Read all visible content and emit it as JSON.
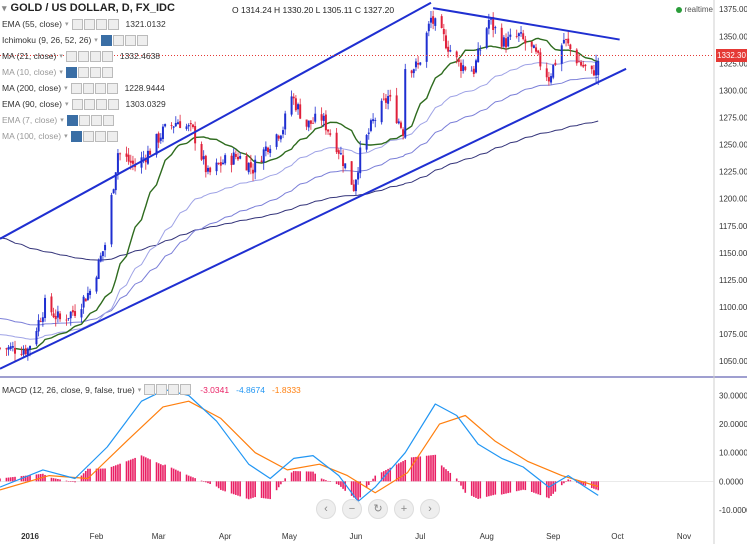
{
  "header": {
    "symbol": "GOLD / US DOLLAR, D, FX_IDC",
    "ohlc": "O 1314.24 H 1330.20 L 1305.11 C 1327.20",
    "realtime_label": "realtime",
    "last_price": "1332.30"
  },
  "indicators": [
    {
      "label": "EMA (55, close)",
      "value": "1321.0132",
      "color": "#1e2a8c"
    },
    {
      "label": "Ichimoku (9, 26, 52, 26)",
      "value": "",
      "color": "#333333"
    },
    {
      "label": "MA (21, close)",
      "value": "1332.4638",
      "color": "#1b5e20"
    },
    {
      "label": "MA (10, close)",
      "value": "",
      "color": "#999999"
    },
    {
      "label": "MA (200, close)",
      "value": "1228.9444",
      "color": "#1e2a8c"
    },
    {
      "label": "EMA (90, close)",
      "value": "1303.0329",
      "color": "#1e2a8c"
    },
    {
      "label": "EMA (7, close)",
      "value": "",
      "color": "#999999"
    },
    {
      "label": "MA (100, close)",
      "value": "",
      "color": "#999999"
    }
  ],
  "macd_legend": {
    "label": "MACD (12, 26, close, 9, false, true)",
    "histogram": "-3.0341",
    "macd": "-4.8674",
    "signal": "-1.8333"
  },
  "colors": {
    "up": "#1f2fd1",
    "down": "#e0203a",
    "ma21": "#2e6b1e",
    "ema90": "#7b7fd8",
    "ma200": "#34347a",
    "trendline": "#1f2fd1",
    "macd": "#2196f3",
    "signal": "#ff7f0e",
    "hist": "#e91e63",
    "priceline": "#e53935"
  },
  "chart_data": [
    {
      "type": "candlestick",
      "title": "GOLD / US DOLLAR, D, FX_IDC",
      "x_ticks": [
        "2016",
        "Feb",
        "Mar",
        "Apr",
        "May",
        "Jun",
        "Jul",
        "Aug",
        "Sep",
        "Oct",
        "Nov"
      ],
      "y_ticks": [
        "1375.00",
        "1350.00",
        "1325.00",
        "1300.00",
        "1275.00",
        "1250.00",
        "1225.00",
        "1200.00",
        "1175.00",
        "1150.00",
        "1125.00",
        "1100.00",
        "1075.00",
        "1050.00"
      ],
      "ylim": [
        1040,
        1378
      ],
      "xlim": [
        "2015-12-18",
        "2016-11-15"
      ],
      "last_price": 1332.3,
      "anchors": [
        {
          "d": "2015-12-18",
          "p": 1062
        },
        {
          "d": "2015-12-31",
          "p": 1061
        },
        {
          "d": "2016-01-08",
          "p": 1102
        },
        {
          "d": "2016-01-15",
          "p": 1088
        },
        {
          "d": "2016-01-22",
          "p": 1097
        },
        {
          "d": "2016-01-29",
          "p": 1115
        },
        {
          "d": "2016-02-05",
          "p": 1158
        },
        {
          "d": "2016-02-11",
          "p": 1243
        },
        {
          "d": "2016-02-19",
          "p": 1230
        },
        {
          "d": "2016-02-25",
          "p": 1242
        },
        {
          "d": "2016-03-03",
          "p": 1262
        },
        {
          "d": "2016-03-10",
          "p": 1272
        },
        {
          "d": "2016-03-17",
          "p": 1262
        },
        {
          "d": "2016-03-24",
          "p": 1222
        },
        {
          "d": "2016-03-31",
          "p": 1234
        },
        {
          "d": "2016-04-07",
          "p": 1240
        },
        {
          "d": "2016-04-14",
          "p": 1228
        },
        {
          "d": "2016-04-21",
          "p": 1250
        },
        {
          "d": "2016-04-28",
          "p": 1266
        },
        {
          "d": "2016-05-02",
          "p": 1295
        },
        {
          "d": "2016-05-09",
          "p": 1268
        },
        {
          "d": "2016-05-16",
          "p": 1275
        },
        {
          "d": "2016-05-23",
          "p": 1250
        },
        {
          "d": "2016-05-31",
          "p": 1211
        },
        {
          "d": "2016-06-03",
          "p": 1241
        },
        {
          "d": "2016-06-09",
          "p": 1271
        },
        {
          "d": "2016-06-16",
          "p": 1294
        },
        {
          "d": "2016-06-23",
          "p": 1263
        },
        {
          "d": "2016-06-24",
          "p": 1322
        },
        {
          "d": "2016-06-30",
          "p": 1322
        },
        {
          "d": "2016-07-06",
          "p": 1366
        },
        {
          "d": "2016-07-12",
          "p": 1348
        },
        {
          "d": "2016-07-19",
          "p": 1324
        },
        {
          "d": "2016-07-26",
          "p": 1319
        },
        {
          "d": "2016-08-02",
          "p": 1365
        },
        {
          "d": "2016-08-09",
          "p": 1344
        },
        {
          "d": "2016-08-16",
          "p": 1350
        },
        {
          "d": "2016-08-23",
          "p": 1335
        },
        {
          "d": "2016-08-30",
          "p": 1312
        },
        {
          "d": "2016-09-06",
          "p": 1347
        },
        {
          "d": "2016-09-13",
          "p": 1326
        },
        {
          "d": "2016-09-19",
          "p": 1315
        },
        {
          "d": "2016-09-22",
          "p": 1327
        }
      ],
      "trendlines": [
        {
          "name": "upper-rising",
          "from": {
            "d": "2015-12-18",
            "p": 1163
          },
          "to": {
            "d": "2016-07-06",
            "p": 1381
          }
        },
        {
          "name": "upper-falling",
          "from": {
            "d": "2016-07-07",
            "p": 1376
          },
          "to": {
            "d": "2016-10-02",
            "p": 1347
          }
        },
        {
          "name": "lower-rising",
          "from": {
            "d": "2015-12-18",
            "p": 1043
          },
          "to": {
            "d": "2016-10-05",
            "p": 1320
          }
        }
      ]
    },
    {
      "type": "line",
      "title": "MACD (12, 26, close, 9, false, true)",
      "y_ticks": [
        "30.0000",
        "20.0000",
        "10.0000",
        "0.0000",
        "-10.0000"
      ],
      "ylim": [
        -13.5,
        34
      ],
      "series": [
        {
          "name": "MACD",
          "points": [
            {
              "d": "2015-12-18",
              "v": -2
            },
            {
              "d": "2016-01-07",
              "v": 4
            },
            {
              "d": "2016-01-22",
              "v": 1
            },
            {
              "d": "2016-02-06",
              "v": 12
            },
            {
              "d": "2016-02-22",
              "v": 28
            },
            {
              "d": "2016-03-04",
              "v": 32
            },
            {
              "d": "2016-03-15",
              "v": 30
            },
            {
              "d": "2016-03-28",
              "v": 21
            },
            {
              "d": "2016-04-12",
              "v": 6
            },
            {
              "d": "2016-04-22",
              "v": 1
            },
            {
              "d": "2016-05-03",
              "v": 8
            },
            {
              "d": "2016-05-12",
              "v": 9
            },
            {
              "d": "2016-05-24",
              "v": 2
            },
            {
              "d": "2016-06-02",
              "v": -7
            },
            {
              "d": "2016-06-10",
              "v": -2
            },
            {
              "d": "2016-06-24",
              "v": 10
            },
            {
              "d": "2016-07-08",
              "v": 27
            },
            {
              "d": "2016-07-18",
              "v": 23
            },
            {
              "d": "2016-07-28",
              "v": 13
            },
            {
              "d": "2016-08-08",
              "v": 8
            },
            {
              "d": "2016-08-18",
              "v": 5
            },
            {
              "d": "2016-08-30",
              "v": -2
            },
            {
              "d": "2016-09-08",
              "v": 2
            },
            {
              "d": "2016-09-16",
              "v": -2
            },
            {
              "d": "2016-09-22",
              "v": -4.9
            }
          ]
        },
        {
          "name": "Signal",
          "points": [
            {
              "d": "2015-12-18",
              "v": -3
            },
            {
              "d": "2016-01-10",
              "v": 2
            },
            {
              "d": "2016-01-28",
              "v": 1
            },
            {
              "d": "2016-02-15",
              "v": 14
            },
            {
              "d": "2016-03-03",
              "v": 26
            },
            {
              "d": "2016-03-15",
              "v": 28
            },
            {
              "d": "2016-03-30",
              "v": 22
            },
            {
              "d": "2016-04-15",
              "v": 10
            },
            {
              "d": "2016-04-30",
              "v": 4
            },
            {
              "d": "2016-05-15",
              "v": 6
            },
            {
              "d": "2016-05-28",
              "v": 2
            },
            {
              "d": "2016-06-10",
              "v": -4
            },
            {
              "d": "2016-06-25",
              "v": 3
            },
            {
              "d": "2016-07-10",
              "v": 20
            },
            {
              "d": "2016-07-22",
              "v": 23
            },
            {
              "d": "2016-08-05",
              "v": 14
            },
            {
              "d": "2016-08-20",
              "v": 7
            },
            {
              "d": "2016-09-05",
              "v": 2
            },
            {
              "d": "2016-09-22",
              "v": -1.8
            }
          ]
        }
      ]
    }
  ]
}
